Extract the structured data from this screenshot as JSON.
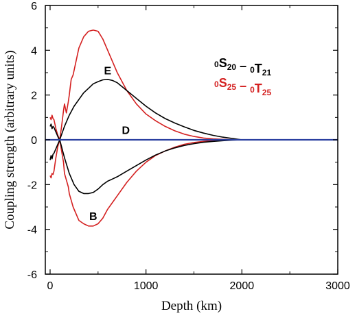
{
  "chart_data": {
    "type": "line",
    "xlabel": "Depth (km)",
    "ylabel": "Coupling strength (arbitrary units)",
    "xlim": [
      -50,
      3000
    ],
    "ylim": [
      -6,
      6
    ],
    "xticks": [
      0,
      1000,
      2000,
      3000
    ],
    "yticks": [
      -6,
      -4,
      -2,
      0,
      2,
      4,
      6
    ],
    "grid": false,
    "legend_position": "top-right",
    "legend": [
      {
        "pre1": "0",
        "main1": "S",
        "sub1": "20",
        "dash": "–",
        "pre2": "0",
        "main2": "T",
        "sub2": "21",
        "color": "#000000"
      },
      {
        "pre1": "0",
        "main1": "S",
        "sub1": "25",
        "dash": "–",
        "pre2": "0",
        "main2": "T",
        "sub2": "25",
        "color": "#d42020"
      }
    ],
    "annotations": [
      {
        "text": "E",
        "x": 600,
        "y": 3.1
      },
      {
        "text": "D",
        "x": 790,
        "y": 0.45
      },
      {
        "text": "B",
        "x": 450,
        "y": -3.4
      }
    ],
    "series": [
      {
        "color": "#d42020",
        "x": [
          0,
          10,
          20,
          30,
          40,
          50,
          60,
          70,
          80,
          90,
          100,
          120,
          140,
          150,
          170,
          190,
          200,
          220,
          240,
          260,
          280,
          300,
          350,
          400,
          450,
          500,
          550,
          600,
          650,
          700,
          800,
          900,
          1000,
          1100,
          1200,
          1300,
          1400,
          1500,
          1600,
          1700,
          1800,
          1900,
          2000
        ],
        "y": [
          1.0,
          0.9,
          1.1,
          0.95,
          0.9,
          0.7,
          0.5,
          0.35,
          0.2,
          0.1,
          0.0,
          0.6,
          1.3,
          1.6,
          1.2,
          1.7,
          2.0,
          2.7,
          2.9,
          3.3,
          3.7,
          4.1,
          4.6,
          4.85,
          4.9,
          4.85,
          4.5,
          4.0,
          3.5,
          3.0,
          2.2,
          1.6,
          1.15,
          0.85,
          0.6,
          0.4,
          0.25,
          0.15,
          0.08,
          0.04,
          0.02,
          0.005,
          0.0
        ]
      },
      {
        "color": "#d42020",
        "x": [
          0,
          10,
          20,
          30,
          40,
          50,
          60,
          70,
          80,
          90,
          100,
          120,
          140,
          150,
          170,
          190,
          200,
          220,
          240,
          260,
          280,
          300,
          350,
          400,
          450,
          500,
          550,
          600,
          650,
          700,
          800,
          900,
          1000,
          1100,
          1200,
          1300,
          1400,
          1500,
          1600,
          1700,
          1800,
          1900,
          2000
        ],
        "y": [
          -1.6,
          -1.7,
          -1.5,
          -1.55,
          -1.4,
          -1.1,
          -0.8,
          -0.55,
          -0.3,
          -0.15,
          0.0,
          -0.5,
          -1.0,
          -1.5,
          -1.8,
          -2.1,
          -2.4,
          -2.7,
          -3.0,
          -3.2,
          -3.4,
          -3.6,
          -3.75,
          -3.85,
          -3.85,
          -3.75,
          -3.5,
          -3.1,
          -2.8,
          -2.5,
          -1.9,
          -1.4,
          -1.0,
          -0.7,
          -0.5,
          -0.33,
          -0.2,
          -0.12,
          -0.07,
          -0.03,
          -0.01,
          -0.003,
          0.0
        ]
      },
      {
        "color": "#000000",
        "x": [
          0,
          10,
          20,
          30,
          40,
          50,
          60,
          70,
          80,
          90,
          100,
          150,
          200,
          250,
          300,
          350,
          400,
          450,
          500,
          550,
          600,
          650,
          700,
          800,
          900,
          1000,
          1100,
          1200,
          1300,
          1400,
          1500,
          1600,
          1700,
          1800,
          1900,
          2000
        ],
        "y": [
          0.6,
          0.7,
          0.5,
          0.6,
          0.55,
          0.45,
          0.35,
          0.25,
          0.15,
          0.05,
          0.0,
          0.6,
          1.1,
          1.5,
          1.8,
          2.1,
          2.3,
          2.5,
          2.6,
          2.68,
          2.7,
          2.65,
          2.55,
          2.2,
          1.85,
          1.5,
          1.2,
          0.95,
          0.75,
          0.58,
          0.42,
          0.3,
          0.2,
          0.12,
          0.06,
          0.0
        ]
      },
      {
        "color": "#000000",
        "x": [
          0,
          10,
          20,
          30,
          40,
          50,
          60,
          70,
          80,
          90,
          100,
          150,
          200,
          250,
          300,
          350,
          400,
          450,
          500,
          550,
          600,
          650,
          700,
          800,
          900,
          1000,
          1100,
          1200,
          1300,
          1400,
          1500,
          1600,
          1700,
          1800,
          1900,
          2000
        ],
        "y": [
          -0.9,
          -0.7,
          -0.85,
          -0.65,
          -0.6,
          -0.5,
          -0.4,
          -0.3,
          -0.2,
          -0.1,
          0.0,
          -0.8,
          -1.5,
          -2.0,
          -2.3,
          -2.4,
          -2.4,
          -2.35,
          -2.2,
          -2.0,
          -1.85,
          -1.75,
          -1.65,
          -1.4,
          -1.15,
          -0.9,
          -0.68,
          -0.5,
          -0.36,
          -0.25,
          -0.17,
          -0.11,
          -0.07,
          -0.04,
          -0.015,
          0.0
        ]
      },
      {
        "color": "#2a3fa0",
        "x": [
          -50,
          3000
        ],
        "y": [
          0,
          0
        ]
      }
    ]
  }
}
